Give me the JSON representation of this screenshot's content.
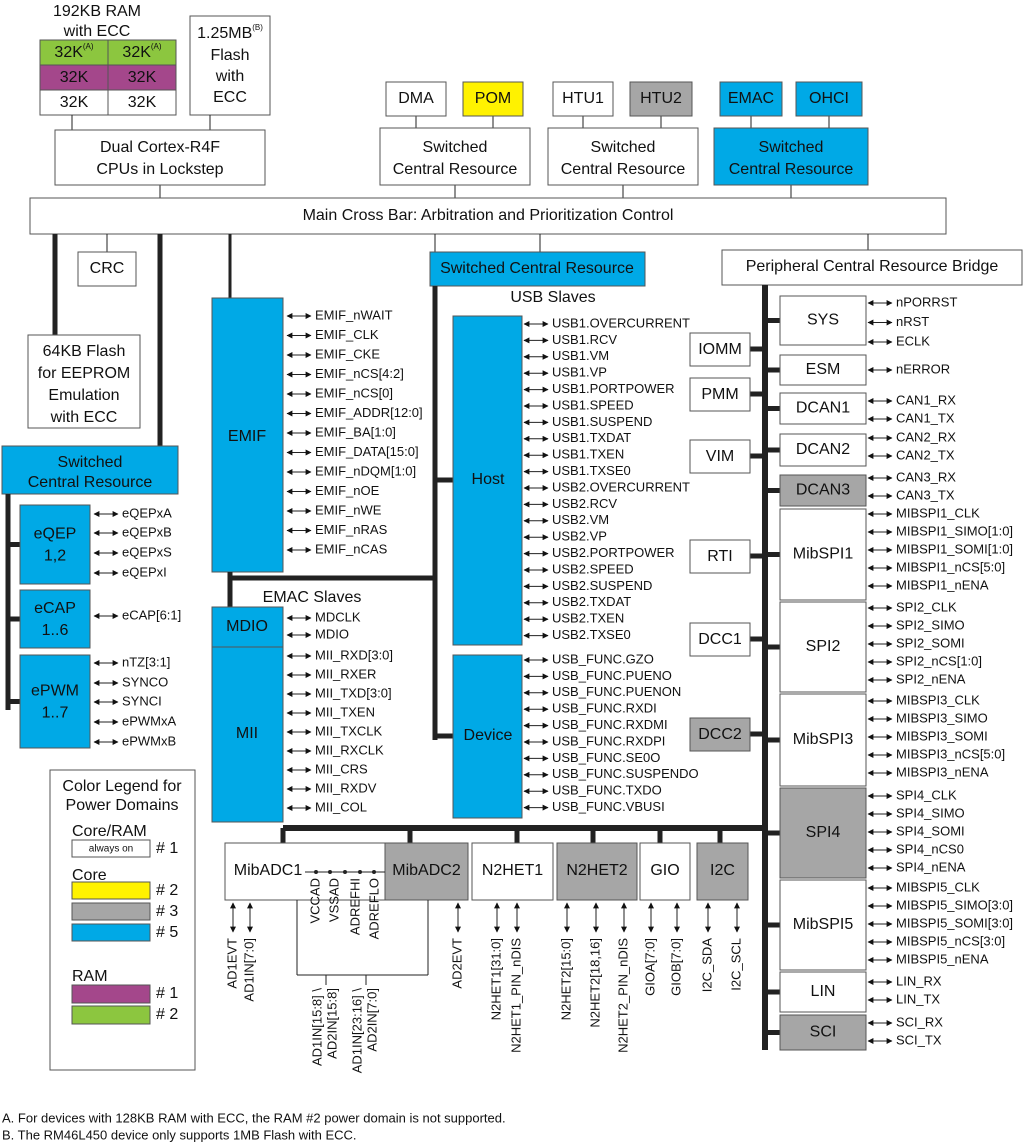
{
  "ram": {
    "title": "192KB RAM",
    "subtitle": "with ECC",
    "cells": [
      {
        "text": "32K",
        "note": "(A)"
      },
      {
        "text": "32K",
        "note": "(A)"
      },
      {
        "text": "32K"
      },
      {
        "text": "32K"
      },
      {
        "text": "32K"
      },
      {
        "text": "32K"
      }
    ]
  },
  "flash": {
    "size": "1.25MB",
    "note": "(B)",
    "lines": [
      "Flash",
      "with",
      "ECC"
    ]
  },
  "cpu": [
    "Dual Cortex-R4F",
    "CPUs in Lockstep"
  ],
  "masters": [
    "DMA",
    "POM",
    "HTU1",
    "HTU2",
    "EMAC",
    "OHCI"
  ],
  "master_resources": [
    [
      "Switched",
      "Central Resource"
    ],
    [
      "Switched",
      "Central Resource"
    ],
    [
      "Switched",
      "Central Resource"
    ]
  ],
  "crossbar": "Main Cross Bar: Arbitration and Prioritization Control",
  "crc": "CRC",
  "eeprom": [
    "64KB Flash",
    "for EEPROM",
    "Emulation",
    "with ECC"
  ],
  "usb_resource": "Switched Central Resource",
  "pcr_bridge": "Peripheral Central Resource Bridge",
  "left_resource": [
    "Switched",
    "Central Resource"
  ],
  "left_modules": [
    {
      "name": [
        "eQEP",
        "1,2"
      ],
      "signals": [
        "eQEPxA",
        "eQEPxB",
        "eQEPxS",
        "eQEPxI"
      ]
    },
    {
      "name": [
        "eCAP",
        "1..6"
      ],
      "signals": [
        "eCAP[6:1]"
      ]
    },
    {
      "name": [
        "ePWM",
        "1..7"
      ],
      "signals": [
        "nTZ[3:1]",
        "SYNCO",
        "SYNCI",
        "ePWMxA",
        "ePWMxB"
      ]
    }
  ],
  "emif": {
    "name": "EMIF",
    "signals": [
      "EMIF_nWAIT",
      "EMIF_CLK",
      "EMIF_CKE",
      "EMIF_nCS[4:2]",
      "EMIF_nCS[0]",
      "EMIF_ADDR[12:0]",
      "EMIF_BA[1:0]",
      "EMIF_DATA[15:0]",
      "EMIF_nDQM[1:0]",
      "EMIF_nOE",
      "EMIF_nWE",
      "EMIF_nRAS",
      "EMIF_nCAS"
    ]
  },
  "emac": {
    "title": "EMAC Slaves",
    "blocks": [
      {
        "name": "MDIO",
        "signals": [
          "MDCLK",
          "MDIO"
        ]
      },
      {
        "name": "MII",
        "signals": [
          "MII_RXD[3:0]",
          "MII_RXER",
          "MII_TXD[3:0]",
          "MII_TXEN",
          "MII_TXCLK",
          "MII_RXCLK",
          "MII_CRS",
          "MII_RXDV",
          "MII_COL"
        ]
      }
    ]
  },
  "usb": {
    "title": "USB Slaves",
    "blocks": [
      {
        "name": "Host",
        "signals": [
          "USB1.OVERCURRENT",
          "USB1.RCV",
          "USB1.VM",
          "USB1.VP",
          "USB1.PORTPOWER",
          "USB1.SPEED",
          "USB1.SUSPEND",
          "USB1.TXDAT",
          "USB1.TXEN",
          "USB1.TXSE0",
          "USB2.OVERCURRENT",
          "USB2.RCV",
          "USB2.VM",
          "USB2.VP",
          "USB2.PORTPOWER",
          "USB2.SPEED",
          "USB2.SUSPEND",
          "USB2.TXDAT",
          "USB2.TXEN",
          "USB2.TXSE0"
        ]
      },
      {
        "name": "Device",
        "signals": [
          "USB_FUNC.GZO",
          "USB_FUNC.PUENO",
          "USB_FUNC.PUENON",
          "USB_FUNC.RXDI",
          "USB_FUNC.RXDMI",
          "USB_FUNC.RXDPI",
          "USB_FUNC.SE0O",
          "USB_FUNC.SUSPENDO",
          "USB_FUNC.TXDO",
          "USB_FUNC.VBUSI"
        ]
      }
    ]
  },
  "bridge_modules": [
    "IOMM",
    "PMM",
    "VIM",
    "RTI",
    "DCC1",
    "DCC2"
  ],
  "peripherals": [
    {
      "name": "SYS",
      "signals": [
        "nPORRST",
        "nRST",
        "ECLK"
      ]
    },
    {
      "name": "ESM",
      "signals": [
        "nERROR"
      ]
    },
    {
      "name": "DCAN1",
      "signals": [
        "CAN1_RX",
        "CAN1_TX"
      ]
    },
    {
      "name": "DCAN2",
      "signals": [
        "CAN2_RX",
        "CAN2_TX"
      ]
    },
    {
      "name": "DCAN3",
      "signals": [
        "CAN3_RX",
        "CAN3_TX"
      ]
    },
    {
      "name": "MibSPI1",
      "signals": [
        "MIBSPI1_CLK",
        "MIBSPI1_SIMO[1:0]",
        "MIBSPI1_SOMI[1:0]",
        "MIBSPI1_nCS[5:0]",
        "MIBSPI1_nENA"
      ]
    },
    {
      "name": "SPI2",
      "signals": [
        "SPI2_CLK",
        "SPI2_SIMO",
        "SPI2_SOMI",
        "SPI2_nCS[1:0]",
        "SPI2_nENA"
      ]
    },
    {
      "name": "MibSPI3",
      "signals": [
        "MIBSPI3_CLK",
        "MIBSPI3_SIMO",
        "MIBSPI3_SOMI",
        "MIBSPI3_nCS[5:0]",
        "MIBSPI3_nENA"
      ]
    },
    {
      "name": "SPI4",
      "signals": [
        "SPI4_CLK",
        "SPI4_SIMO",
        "SPI4_SOMI",
        "SPI4_nCS0",
        "SPI4_nENA"
      ]
    },
    {
      "name": "MibSPI5",
      "signals": [
        "MIBSPI5_CLK",
        "MIBSPI5_SIMO[3:0]",
        "MIBSPI5_SOMI[3:0]",
        "MIBSPI5_nCS[3:0]",
        "MIBSPI5_nENA"
      ]
    },
    {
      "name": "LIN",
      "signals": [
        "LIN_RX",
        "LIN_TX"
      ]
    },
    {
      "name": "SCI",
      "signals": [
        "SCI_RX",
        "SCI_TX"
      ]
    }
  ],
  "bottom_modules": [
    "MibADC1",
    "MibADC2",
    "N2HET1",
    "N2HET2",
    "GIO",
    "I2C"
  ],
  "bottom_pins": [
    [
      "AD1EVT"
    ],
    [
      "AD1IN[7:0]"
    ],
    [
      "VCCAD"
    ],
    [
      "VSSAD"
    ],
    [
      "ADREFHI"
    ],
    [
      "ADREFLO"
    ],
    [
      "AD1IN[15:8] \\",
      "AD2IN[15:8]"
    ],
    [
      "AD1IN[23:16] \\",
      "AD2IN[7:0]"
    ],
    [
      "AD2EVT"
    ],
    [
      "N2HET1[31:0]"
    ],
    [
      "N2HET1_PIN_nDIS"
    ],
    [
      "N2HET2[15:0]"
    ],
    [
      "N2HET2[18,16]"
    ],
    [
      "N2HET2_PIN_nDIS"
    ],
    [
      "GIOA[7:0]"
    ],
    [
      "GIOB[7:0]"
    ],
    [
      "I2C_SDA"
    ],
    [
      "I2C_SCL"
    ]
  ],
  "legend": {
    "title": [
      "Color Legend for",
      "Power Domains"
    ],
    "groups": [
      {
        "name": "Core/RAM",
        "items": [
          {
            "swatch": "always on",
            "label": "# 1"
          }
        ]
      },
      {
        "name": "Core",
        "items": [
          {
            "label": "# 2"
          },
          {
            "label": "# 3"
          },
          {
            "label": "# 5"
          }
        ]
      },
      {
        "name": "RAM",
        "items": [
          {
            "label": "# 1"
          },
          {
            "label": "# 2"
          }
        ]
      }
    ]
  },
  "notes": [
    "A. For devices with 128KB RAM with ECC, the RAM #2 power domain is not supported.",
    "B. The RM46L450 device only supports 1MB Flash with ECC."
  ]
}
